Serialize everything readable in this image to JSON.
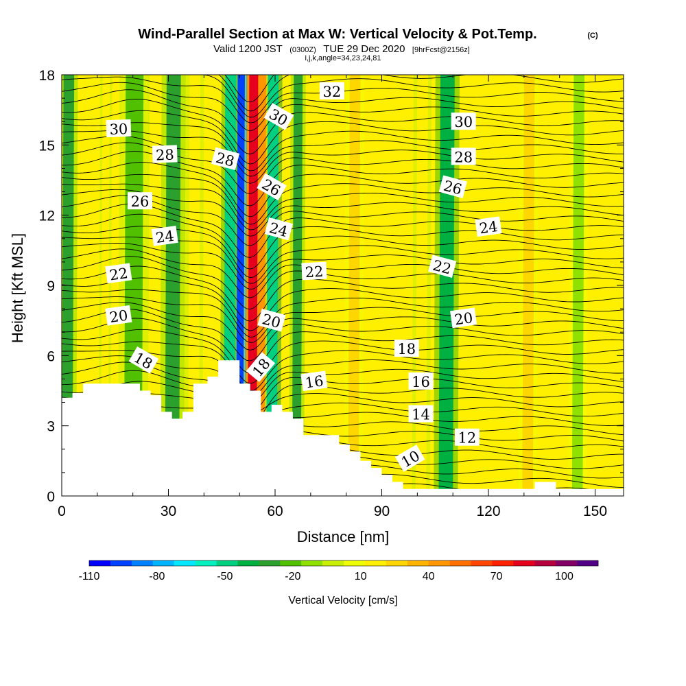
{
  "chart_data": {
    "type": "heatmap",
    "title": "Wind-Parallel Section at Max W: Vertical Velocity & Pot.Temp.",
    "title_mark": "(C)",
    "subtitle": {
      "valid": "Valid 1200 JST",
      "utc": "(0300Z)",
      "date": "TUE 29 Dec 2020",
      "forecast": "[9hrFcst@2156z]"
    },
    "index_line": "i,j,k,angle=34,23,24,81",
    "xlabel": "Distance [nm]",
    "ylabel": "Height [Kft MSL]",
    "xlim": [
      0,
      158
    ],
    "ylim": [
      0,
      18
    ],
    "x_ticks": [
      "0",
      "30",
      "60",
      "90",
      "120",
      "150"
    ],
    "x_tick_values": [
      0,
      30,
      60,
      90,
      120,
      150
    ],
    "y_ticks": [
      "0",
      "3",
      "6",
      "9",
      "12",
      "15",
      "18"
    ],
    "y_tick_values": [
      0,
      3,
      6,
      9,
      12,
      15,
      18
    ],
    "colorbar": {
      "title": "Vertical Velocity [cm/s]",
      "labels": [
        "-110",
        "-80",
        "-50",
        "-20",
        "10",
        "40",
        "70",
        "100"
      ],
      "label_values": [
        -110,
        -80,
        -50,
        -20,
        10,
        40,
        70,
        100
      ],
      "min": -110,
      "max": 115,
      "colors": [
        "#0000ff",
        "#0040ff",
        "#0080ff",
        "#00b4ff",
        "#00e8ff",
        "#00f0c0",
        "#00d080",
        "#00b040",
        "#2ca02c",
        "#50c000",
        "#90e000",
        "#c8f000",
        "#f0ff00",
        "#fff000",
        "#ffd700",
        "#ffb400",
        "#ff9600",
        "#ff7000",
        "#ff4600",
        "#ff1e00",
        "#e6001e",
        "#b4003c",
        "#820064",
        "#500082"
      ]
    },
    "terrain": [
      [
        0,
        4.2
      ],
      [
        3,
        4.2
      ],
      [
        3,
        4.4
      ],
      [
        6,
        4.4
      ],
      [
        6,
        4.8
      ],
      [
        22,
        4.8
      ],
      [
        22,
        4.5
      ],
      [
        25,
        4.5
      ],
      [
        25,
        4.3
      ],
      [
        28,
        4.3
      ],
      [
        28,
        3.6
      ],
      [
        31,
        3.6
      ],
      [
        31,
        3.3
      ],
      [
        34,
        3.3
      ],
      [
        34,
        3.6
      ],
      [
        37,
        3.6
      ],
      [
        37,
        4.8
      ],
      [
        41,
        4.8
      ],
      [
        41,
        5.1
      ],
      [
        44,
        5.1
      ],
      [
        44,
        5.8
      ],
      [
        50,
        5.8
      ],
      [
        50,
        4.8
      ],
      [
        53,
        4.8
      ],
      [
        53,
        4.5
      ],
      [
        56,
        4.5
      ],
      [
        56,
        3.6
      ],
      [
        59,
        3.6
      ],
      [
        59,
        3.9
      ],
      [
        62,
        3.9
      ],
      [
        62,
        3.6
      ],
      [
        65,
        3.6
      ],
      [
        65,
        3.3
      ],
      [
        68,
        3.3
      ],
      [
        68,
        2.6
      ],
      [
        71,
        2.6
      ],
      [
        71,
        2.6
      ],
      [
        78,
        2.6
      ],
      [
        78,
        2.2
      ],
      [
        81,
        2.2
      ],
      [
        81,
        1.9
      ],
      [
        84,
        1.9
      ],
      [
        84,
        1.5
      ],
      [
        87,
        1.5
      ],
      [
        87,
        1.2
      ],
      [
        90,
        1.2
      ],
      [
        90,
        0.9
      ],
      [
        93,
        0.9
      ],
      [
        93,
        0.6
      ],
      [
        96,
        0.6
      ],
      [
        96,
        0.3
      ],
      [
        133,
        0.3
      ],
      [
        133,
        0.6
      ],
      [
        139,
        0.6
      ],
      [
        139,
        0.3
      ],
      [
        158,
        0.3
      ]
    ],
    "vertical_velocity_bands": [
      {
        "x": 1.5,
        "width": 3,
        "value": -35
      },
      {
        "x": 12,
        "width": 2,
        "value": 15
      },
      {
        "x": 20,
        "width": 5,
        "value": -20
      },
      {
        "x": 31,
        "width": 4,
        "value": -30
      },
      {
        "x": 37,
        "width": 3,
        "value": 20
      },
      {
        "x": 47,
        "width": 3,
        "value": -45
      },
      {
        "x": 50,
        "width": 2,
        "value": -95
      },
      {
        "x": 53.5,
        "width": 2.5,
        "value": 85
      },
      {
        "x": 56,
        "width": 2,
        "value": 40
      },
      {
        "x": 59,
        "width": 3,
        "value": -50
      },
      {
        "x": 66,
        "width": 2.5,
        "value": -35
      },
      {
        "x": 82,
        "width": 3,
        "value": 25
      },
      {
        "x": 101,
        "width": 3,
        "value": 20
      },
      {
        "x": 108,
        "width": 4,
        "value": -40
      },
      {
        "x": 131,
        "width": 3,
        "value": 25
      },
      {
        "x": 145,
        "width": 3,
        "value": -15
      }
    ],
    "isentrope_levels": [
      10,
      12,
      14,
      16,
      18,
      20,
      22,
      24,
      26,
      28,
      30,
      32
    ],
    "isentrope_labels": [
      {
        "text": "30",
        "x": 16,
        "y": 15.7,
        "angle": -2
      },
      {
        "text": "28",
        "x": 29,
        "y": 14.6,
        "angle": -2
      },
      {
        "text": "26",
        "x": 22,
        "y": 12.6,
        "angle": 0
      },
      {
        "text": "24",
        "x": 29,
        "y": 11.1,
        "angle": -8
      },
      {
        "text": "22",
        "x": 16,
        "y": 9.5,
        "angle": -8
      },
      {
        "text": "20",
        "x": 16,
        "y": 7.7,
        "angle": -8
      },
      {
        "text": "18",
        "x": 23,
        "y": 5.8,
        "angle": 30
      },
      {
        "text": "32",
        "x": 76,
        "y": 17.3,
        "angle": 0
      },
      {
        "text": "30",
        "x": 61,
        "y": 16.2,
        "angle": 30
      },
      {
        "text": "28",
        "x": 46,
        "y": 14.4,
        "angle": 15
      },
      {
        "text": "26",
        "x": 59,
        "y": 13.2,
        "angle": 30
      },
      {
        "text": "24",
        "x": 61,
        "y": 11.4,
        "angle": 15
      },
      {
        "text": "22",
        "x": 71,
        "y": 9.6,
        "angle": -3
      },
      {
        "text": "20",
        "x": 59,
        "y": 7.5,
        "angle": 15
      },
      {
        "text": "18",
        "x": 56,
        "y": 5.5,
        "angle": -50
      },
      {
        "text": "16",
        "x": 71,
        "y": 4.9,
        "angle": -8
      },
      {
        "text": "18",
        "x": 97,
        "y": 6.3,
        "angle": 0
      },
      {
        "text": "16",
        "x": 101,
        "y": 4.9,
        "angle": 0
      },
      {
        "text": "14",
        "x": 101,
        "y": 3.5,
        "angle": 0
      },
      {
        "text": "12",
        "x": 114,
        "y": 2.5,
        "angle": 0
      },
      {
        "text": "10",
        "x": 98,
        "y": 1.6,
        "angle": -30
      },
      {
        "text": "30",
        "x": 113,
        "y": 16.0,
        "angle": 0
      },
      {
        "text": "28",
        "x": 113,
        "y": 14.5,
        "angle": 0
      },
      {
        "text": "26",
        "x": 110,
        "y": 13.2,
        "angle": 15
      },
      {
        "text": "24",
        "x": 120,
        "y": 11.5,
        "angle": -8
      },
      {
        "text": "22",
        "x": 107,
        "y": 9.8,
        "angle": 15
      },
      {
        "text": "20",
        "x": 113,
        "y": 7.6,
        "angle": -8
      }
    ]
  }
}
